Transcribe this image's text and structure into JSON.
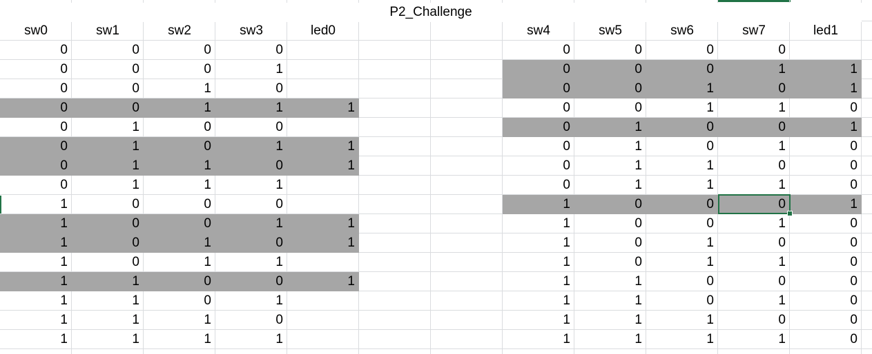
{
  "title": "P2_Challenge",
  "left": {
    "headers": [
      "sw0",
      "sw1",
      "sw2",
      "sw3",
      "led0"
    ],
    "rows": [
      [
        "0",
        "0",
        "0",
        "0",
        ""
      ],
      [
        "0",
        "0",
        "0",
        "1",
        ""
      ],
      [
        "0",
        "0",
        "1",
        "0",
        ""
      ],
      [
        "0",
        "0",
        "1",
        "1",
        "1"
      ],
      [
        "0",
        "1",
        "0",
        "0",
        ""
      ],
      [
        "0",
        "1",
        "0",
        "1",
        "1"
      ],
      [
        "0",
        "1",
        "1",
        "0",
        "1"
      ],
      [
        "0",
        "1",
        "1",
        "1",
        ""
      ],
      [
        "1",
        "0",
        "0",
        "0",
        ""
      ],
      [
        "1",
        "0",
        "0",
        "1",
        "1"
      ],
      [
        "1",
        "0",
        "1",
        "0",
        "1"
      ],
      [
        "1",
        "0",
        "1",
        "1",
        ""
      ],
      [
        "1",
        "1",
        "0",
        "0",
        "1"
      ],
      [
        "1",
        "1",
        "0",
        "1",
        ""
      ],
      [
        "1",
        "1",
        "1",
        "0",
        ""
      ],
      [
        "1",
        "1",
        "1",
        "1",
        ""
      ]
    ],
    "highlighted_rows": [
      3,
      5,
      6,
      9,
      10,
      12
    ]
  },
  "right": {
    "headers": [
      "sw4",
      "sw5",
      "sw6",
      "sw7",
      "led1"
    ],
    "rows": [
      [
        "0",
        "0",
        "0",
        "0",
        ""
      ],
      [
        "0",
        "0",
        "0",
        "1",
        "1"
      ],
      [
        "0",
        "0",
        "1",
        "0",
        "1"
      ],
      [
        "0",
        "0",
        "1",
        "1",
        "0"
      ],
      [
        "0",
        "1",
        "0",
        "0",
        "1"
      ],
      [
        "0",
        "1",
        "0",
        "1",
        "0"
      ],
      [
        "0",
        "1",
        "1",
        "0",
        "0"
      ],
      [
        "0",
        "1",
        "1",
        "1",
        "0"
      ],
      [
        "1",
        "0",
        "0",
        "0",
        "1"
      ],
      [
        "1",
        "0",
        "0",
        "1",
        "0"
      ],
      [
        "1",
        "0",
        "1",
        "0",
        "0"
      ],
      [
        "1",
        "0",
        "1",
        "1",
        "0"
      ],
      [
        "1",
        "1",
        "0",
        "0",
        "0"
      ],
      [
        "1",
        "1",
        "0",
        "1",
        "0"
      ],
      [
        "1",
        "1",
        "1",
        "0",
        "0"
      ],
      [
        "1",
        "1",
        "1",
        "1",
        "0"
      ]
    ],
    "highlighted_rows": [
      1,
      2,
      4,
      8
    ]
  },
  "colors": {
    "grid": "#dadcdf",
    "highlight": "#a6a6a6",
    "selection": "#217346"
  }
}
